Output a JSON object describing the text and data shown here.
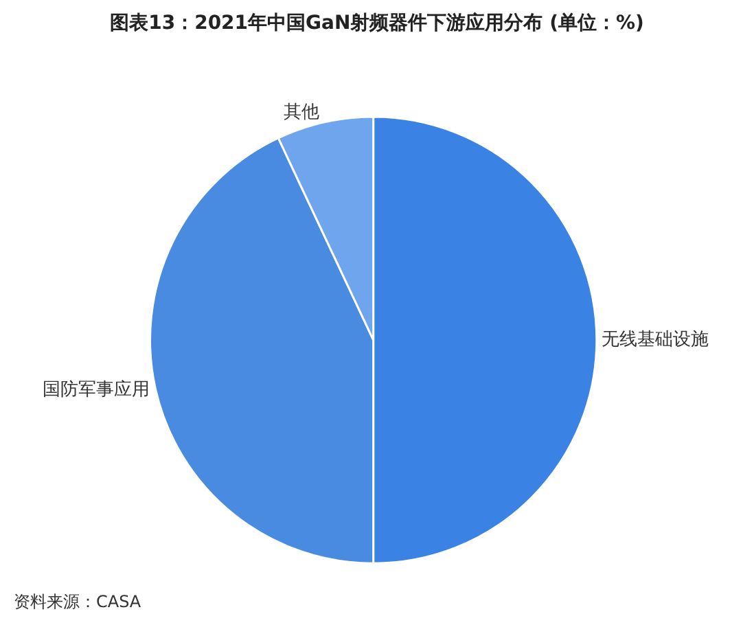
{
  "chart_data": {
    "type": "pie",
    "title": "图表13：2021年中国GaN射频器件下游应用分布 (单位：%)",
    "categories": [
      "无线基础设施",
      "国防军事应用",
      "其他"
    ],
    "values": [
      50,
      43,
      7
    ],
    "colors": [
      "#3a82e3",
      "#4a8be2",
      "#6fa5ec"
    ],
    "annotations": [
      "资料来源：CASA"
    ],
    "legend": false
  }
}
